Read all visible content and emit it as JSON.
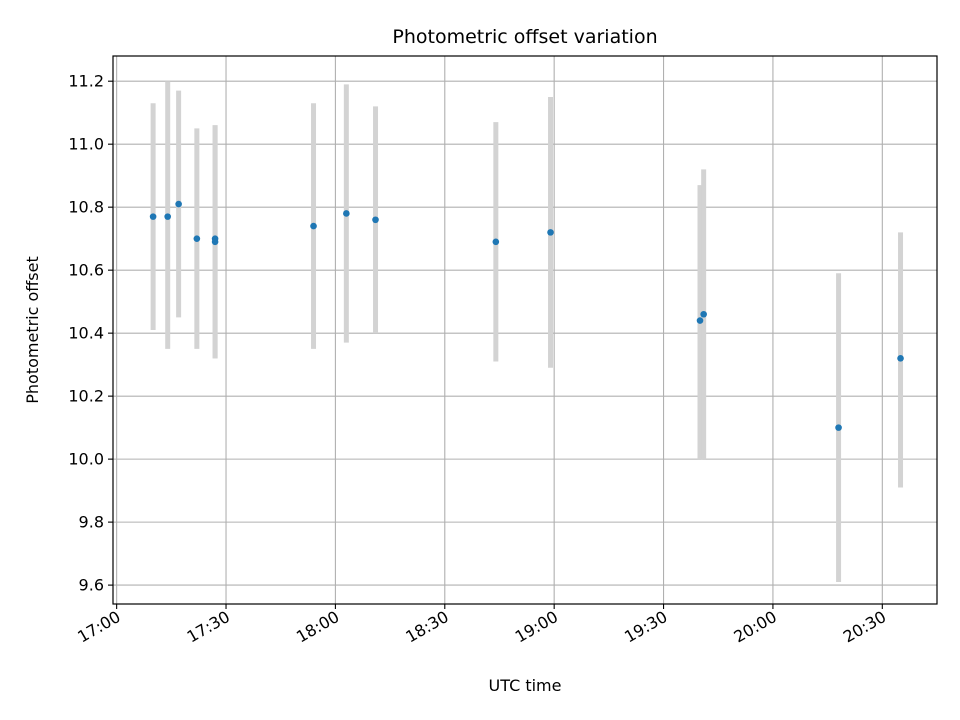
{
  "chart_data": {
    "type": "scatter",
    "title": "Photometric offset variation",
    "xlabel": "UTC time",
    "ylabel": "Photometric offset",
    "grid": true,
    "x_unit": "time of day (HH:MM, UTC)",
    "xlim": [
      "16:59",
      "20:45"
    ],
    "ylim": [
      9.54,
      11.28
    ],
    "x_ticks": [
      "17:00",
      "17:30",
      "18:00",
      "18:30",
      "19:00",
      "19:30",
      "20:00",
      "20:30"
    ],
    "y_ticks": [
      9.6,
      9.8,
      10.0,
      10.2,
      10.4,
      10.6,
      10.8,
      11.0,
      11.2
    ],
    "y_tick_labels": [
      "9.6",
      "9.8",
      "10.0",
      "10.2",
      "10.4",
      "10.6",
      "10.8",
      "11.0",
      "11.2"
    ],
    "marker_color": "#1f77b4",
    "errorbar_color": "#d3d3d3",
    "points": [
      {
        "x": "17:10",
        "y": 10.77,
        "ylow": 10.41,
        "yhigh": 11.13
      },
      {
        "x": "17:14",
        "y": 10.77,
        "ylow": 10.35,
        "yhigh": 11.2
      },
      {
        "x": "17:17",
        "y": 10.81,
        "ylow": 10.45,
        "yhigh": 11.17
      },
      {
        "x": "17:22",
        "y": 10.7,
        "ylow": 10.35,
        "yhigh": 11.05
      },
      {
        "x": "17:27",
        "y": 10.69,
        "ylow": 10.32,
        "yhigh": 11.06
      },
      {
        "x": "17:27",
        "y": 10.7,
        "ylow": 10.32,
        "yhigh": 11.06
      },
      {
        "x": "17:54",
        "y": 10.74,
        "ylow": 10.35,
        "yhigh": 11.13
      },
      {
        "x": "18:03",
        "y": 10.78,
        "ylow": 10.37,
        "yhigh": 11.19
      },
      {
        "x": "18:11",
        "y": 10.76,
        "ylow": 10.4,
        "yhigh": 11.12
      },
      {
        "x": "18:44",
        "y": 10.69,
        "ylow": 10.31,
        "yhigh": 11.07
      },
      {
        "x": "18:59",
        "y": 10.72,
        "ylow": 10.29,
        "yhigh": 11.15
      },
      {
        "x": "19:40",
        "y": 10.44,
        "ylow": 10.0,
        "yhigh": 10.87
      },
      {
        "x": "19:41",
        "y": 10.46,
        "ylow": 10.0,
        "yhigh": 10.92
      },
      {
        "x": "20:18",
        "y": 10.1,
        "ylow": 9.61,
        "yhigh": 10.59
      },
      {
        "x": "20:35",
        "y": 10.32,
        "ylow": 9.91,
        "yhigh": 10.72
      }
    ]
  }
}
